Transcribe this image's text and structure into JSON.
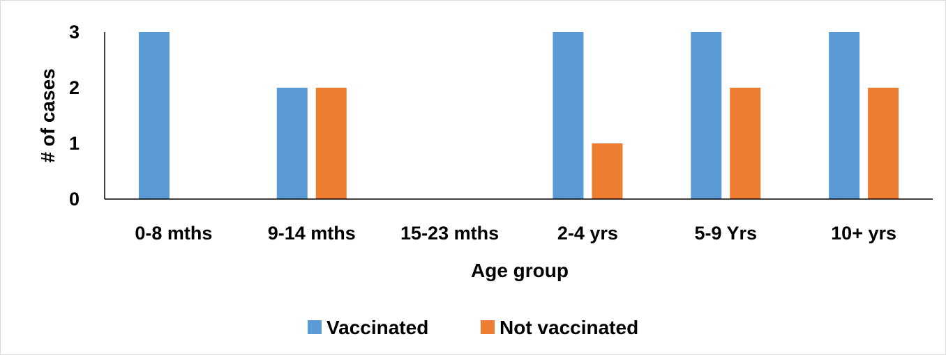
{
  "chart_data": {
    "type": "bar",
    "categories": [
      "0-8 mths",
      "9-14 mths",
      "15-23 mths",
      "2-4 yrs",
      "5-9 Yrs",
      "10+ yrs"
    ],
    "series": [
      {
        "name": "Vaccinated",
        "color": "#5b9bd5",
        "values": [
          3,
          2,
          0,
          3,
          3,
          3
        ]
      },
      {
        "name": "Not vaccinated",
        "color": "#ed7d31",
        "values": [
          0,
          2,
          0,
          1,
          2,
          2
        ]
      }
    ],
    "xlabel": "Age group",
    "ylabel": "# of cases",
    "ylim": [
      0,
      3
    ],
    "yticks": [
      "0",
      "1",
      "2",
      "3"
    ],
    "grid": false,
    "legend_position": "bottom"
  }
}
